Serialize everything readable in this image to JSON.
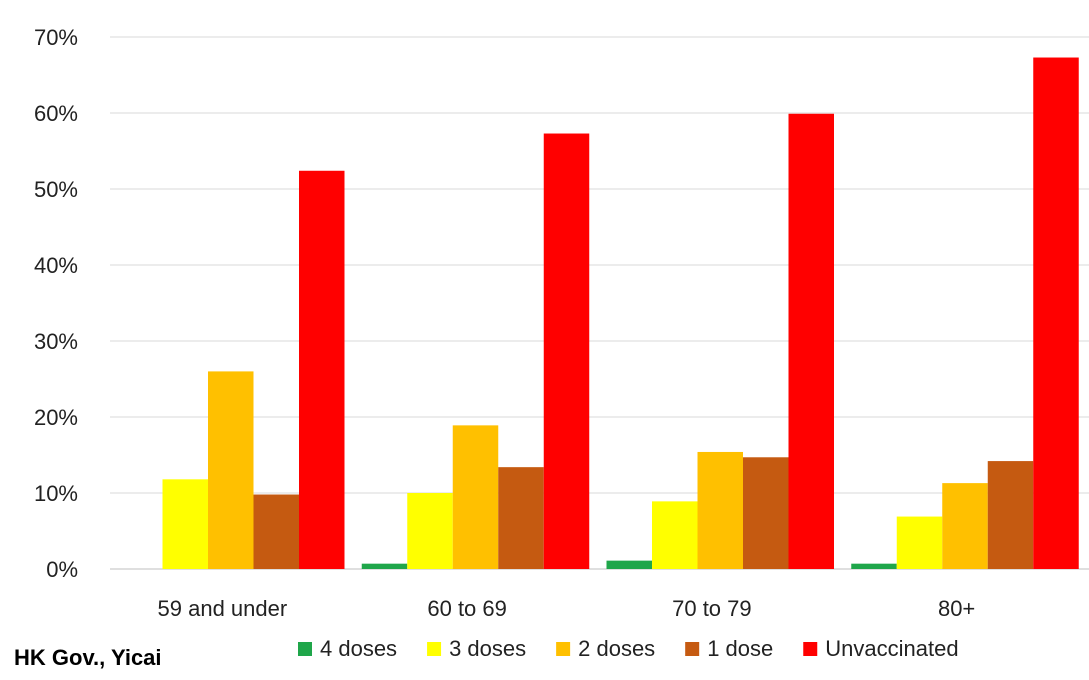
{
  "source": "HK Gov., Yicai",
  "chart_data": {
    "type": "bar",
    "categories": [
      "59 and under",
      "60 to 69",
      "70 to 79",
      "80+"
    ],
    "series": [
      {
        "name": "4 doses",
        "color": "#1fa64a",
        "values": [
          0.0,
          0.7,
          1.1,
          0.7
        ]
      },
      {
        "name": "3 doses",
        "color": "#ffff00",
        "values": [
          11.8,
          10.0,
          8.9,
          6.9
        ]
      },
      {
        "name": "2 doses",
        "color": "#ffc000",
        "values": [
          26.0,
          18.9,
          15.4,
          11.3
        ]
      },
      {
        "name": "1 dose",
        "color": "#c55a11",
        "values": [
          9.8,
          13.4,
          14.7,
          14.2
        ]
      },
      {
        "name": "Unvaccinated",
        "color": "#ff0000",
        "values": [
          52.4,
          57.3,
          59.9,
          67.3
        ]
      }
    ],
    "ylim": [
      0,
      70
    ],
    "yticks": [
      "0%",
      "10%",
      "20%",
      "30%",
      "40%",
      "50%",
      "60%",
      "70%"
    ],
    "grid": true,
    "legend_position": "bottom"
  }
}
